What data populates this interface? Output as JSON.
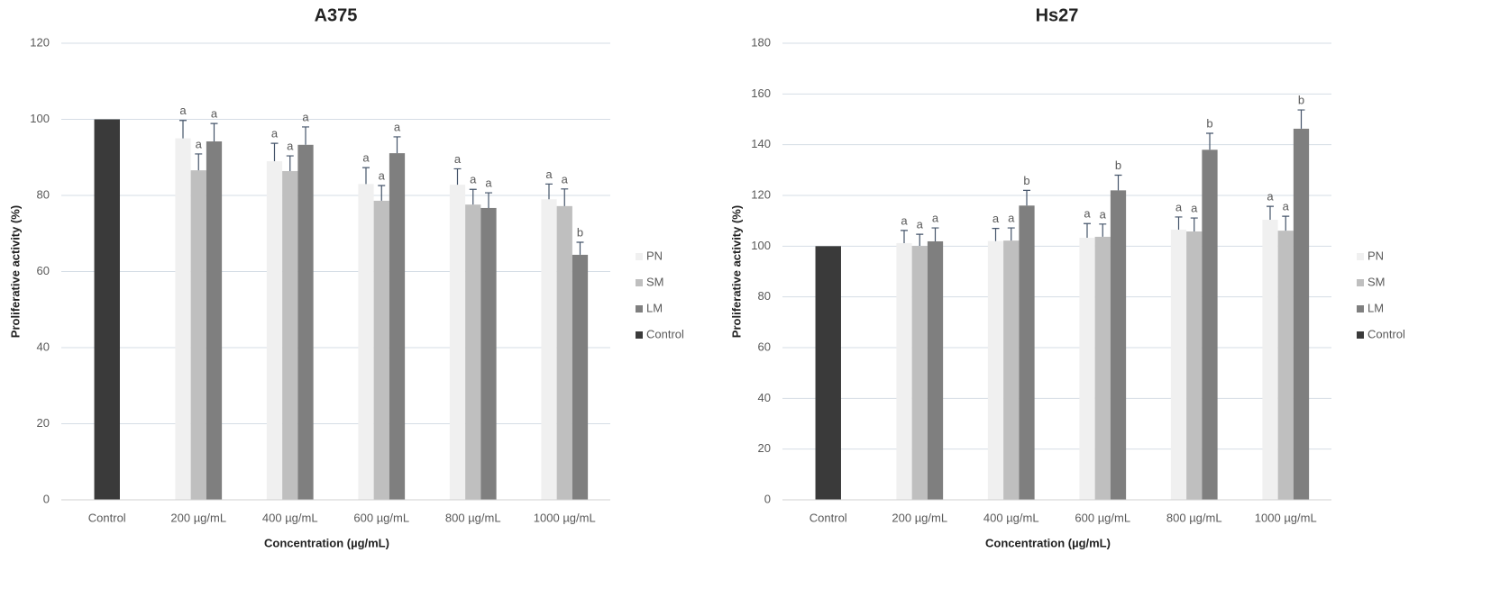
{
  "chart_data": [
    {
      "type": "bar",
      "title": "A375",
      "x_label": "Concentration (µg/mL)",
      "y_label": "Proliferative activity (%)",
      "categories": [
        "Control",
        "200 µg/mL",
        "400 µg/mL",
        "600 µg/mL",
        "800 µg/mL",
        "1000 µg/mL"
      ],
      "series": [
        {
          "name": "PN",
          "color": "#f0f0f0",
          "values": [
            null,
            95,
            89,
            83,
            82.8,
            79
          ],
          "errors": [
            null,
            4.7,
            4.7,
            4.3,
            4.2,
            4
          ],
          "letters": [
            null,
            "a",
            "a",
            "a",
            "a",
            "a"
          ]
        },
        {
          "name": "SM",
          "color": "#bfbfbf",
          "values": [
            null,
            86.6,
            86.4,
            78.6,
            77.6,
            77.2
          ],
          "errors": [
            null,
            4.3,
            4,
            4,
            4,
            4.5
          ],
          "letters": [
            null,
            "a",
            "a",
            "a",
            "a",
            "a"
          ]
        },
        {
          "name": "LM",
          "color": "#7f7f7f",
          "values": [
            null,
            94.2,
            93.3,
            91.1,
            76.7,
            64.4
          ],
          "errors": [
            null,
            4.7,
            4.7,
            4.3,
            4,
            3.3
          ],
          "letters": [
            null,
            "a",
            "a",
            "a",
            "a",
            "b"
          ]
        },
        {
          "name": "Control",
          "color": "#3a3a3a",
          "values": [
            100,
            null,
            null,
            null,
            null,
            null
          ]
        }
      ],
      "ylim": [
        0,
        120
      ],
      "yticks": [
        0,
        20,
        40,
        60,
        80,
        100,
        120
      ],
      "grid": true,
      "legend": "right"
    },
    {
      "type": "bar",
      "title": "Hs27",
      "x_label": "Concentration (µg/mL)",
      "y_label": "Proliferative activity (%)",
      "categories": [
        "Control",
        "200 µg/mL",
        "400 µg/mL",
        "600 µg/mL",
        "800 µg/mL",
        "1000 µg/mL"
      ],
      "series": [
        {
          "name": "PN",
          "color": "#f0f0f0",
          "values": [
            null,
            101.2,
            102,
            103.3,
            106.5,
            110.4
          ],
          "errors": [
            null,
            5,
            5,
            5.6,
            5,
            5.3
          ],
          "letters": [
            null,
            "a",
            "a",
            "a",
            "a",
            "a"
          ]
        },
        {
          "name": "SM",
          "color": "#bfbfbf",
          "values": [
            null,
            100.1,
            102.2,
            103.7,
            105.8,
            106.1
          ],
          "errors": [
            null,
            4.6,
            5,
            5,
            5.3,
            5.7
          ],
          "letters": [
            null,
            "a",
            "a",
            "a",
            "a",
            "a"
          ]
        },
        {
          "name": "LM",
          "color": "#7f7f7f",
          "values": [
            null,
            101.9,
            116,
            122,
            138,
            146.3
          ],
          "errors": [
            null,
            5.3,
            6,
            6,
            6.5,
            7.4
          ],
          "letters": [
            null,
            "a",
            "b",
            "b",
            "b",
            "b"
          ]
        },
        {
          "name": "Control",
          "color": "#3a3a3a",
          "values": [
            100,
            null,
            null,
            null,
            null,
            null
          ]
        }
      ],
      "ylim": [
        0,
        180
      ],
      "yticks": [
        0,
        20,
        40,
        60,
        80,
        100,
        120,
        140,
        160,
        180
      ],
      "grid": true,
      "legend": "right"
    }
  ]
}
